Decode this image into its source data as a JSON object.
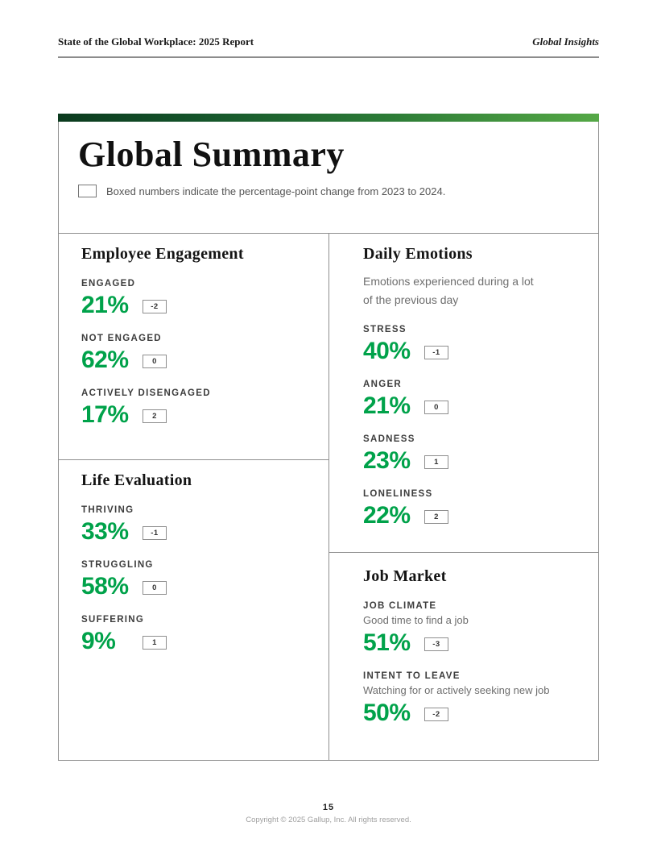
{
  "page_header": {
    "left": "State of the Global Workplace: 2025 Report",
    "right": "Global Insights"
  },
  "summary": {
    "title": "Global Summary",
    "legend": "Boxed numbers indicate the percentage-point change from 2023 to 2024."
  },
  "sections": [
    {
      "id": "employee-engagement",
      "title": "Employee Engagement",
      "items": [
        {
          "label": "ENGAGED",
          "value": "21%",
          "change": "-2"
        },
        {
          "label": "NOT ENGAGED",
          "value": "62%",
          "change": "0"
        },
        {
          "label": "ACTIVELY DISENGAGED",
          "value": "17%",
          "change": "2"
        }
      ]
    },
    {
      "id": "daily-emotions",
      "title": "Daily Emotions",
      "subtitle": "Emotions experienced during a lot of the previous day",
      "items": [
        {
          "label": "STRESS",
          "value": "40%",
          "change": "-1"
        },
        {
          "label": "ANGER",
          "value": "21%",
          "change": "0"
        },
        {
          "label": "SADNESS",
          "value": "23%",
          "change": "1"
        },
        {
          "label": "LONELINESS",
          "value": "22%",
          "change": "2"
        }
      ]
    },
    {
      "id": "life-evaluation",
      "title": "Life Evaluation",
      "items": [
        {
          "label": "THRIVING",
          "value": "33%",
          "change": "-1"
        },
        {
          "label": "STRUGGLING",
          "value": "58%",
          "change": "0"
        },
        {
          "label": "SUFFERING",
          "value": "9%",
          "change": "1"
        }
      ]
    },
    {
      "id": "job-market",
      "title": "Job Market",
      "items": [
        {
          "label": "JOB CLIMATE",
          "sublabel": "Good time to find a job",
          "value": "51%",
          "change": "-3"
        },
        {
          "label": "INTENT TO LEAVE",
          "sublabel": "Watching for or actively seeking new job",
          "value": "50%",
          "change": "-2"
        }
      ]
    }
  ],
  "footer": {
    "page_number": "15",
    "copyright": "Copyright © 2025 Gallup, Inc. All rights reserved."
  },
  "colors": {
    "accent_green": "#00a24a",
    "gradient_start": "#0b3a1e",
    "gradient_end": "#55a846"
  }
}
